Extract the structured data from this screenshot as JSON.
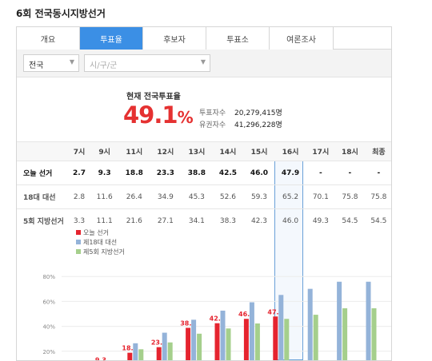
{
  "page_title": "6회 전국동시지방선거",
  "tabs": [
    {
      "label": "개요",
      "active": false
    },
    {
      "label": "투표율",
      "active": true
    },
    {
      "label": "후보자",
      "active": false
    },
    {
      "label": "투표소",
      "active": false
    },
    {
      "label": "여론조사",
      "active": false
    }
  ],
  "filters": {
    "region": "전국",
    "district_placeholder": "시/구/군"
  },
  "summary": {
    "title": "현재 전국투표율",
    "rate": "49.1",
    "unit": "%",
    "voters_label": "투표자수",
    "voters_value": "20,279,415명",
    "electorate_label": "유권자수",
    "electorate_value": "41,296,228명"
  },
  "table": {
    "hours": [
      "7시",
      "9시",
      "11시",
      "12시",
      "13시",
      "14시",
      "15시",
      "16시",
      "17시",
      "18시",
      "최종"
    ],
    "rows": [
      {
        "label": "오늘 선거",
        "values": [
          "2.7",
          "9.3",
          "18.8",
          "23.3",
          "38.8",
          "42.5",
          "46.0",
          "47.9",
          "-",
          "-",
          "-"
        ]
      },
      {
        "label": "18대 대선",
        "values": [
          "2.8",
          "11.6",
          "26.4",
          "34.9",
          "45.3",
          "52.6",
          "59.3",
          "65.2",
          "70.1",
          "75.8",
          "75.8"
        ]
      },
      {
        "label": "5회 지방선거",
        "values": [
          "3.3",
          "11.1",
          "21.6",
          "27.1",
          "34.1",
          "38.3",
          "42.3",
          "46.0",
          "49.3",
          "54.5",
          "54.5"
        ]
      }
    ]
  },
  "chart_data": {
    "type": "bar",
    "categories": [
      "7시",
      "9시",
      "11시",
      "12시",
      "13시",
      "14시",
      "15시",
      "16시",
      "17시",
      "18시",
      "최종"
    ],
    "series": [
      {
        "name": "오늘 선거",
        "values": [
          2.7,
          9.3,
          18.8,
          23.3,
          38.8,
          42.5,
          46.0,
          47.9,
          null,
          null,
          null
        ],
        "color": "#e5242f"
      },
      {
        "name": "제18대 대선",
        "values": [
          2.8,
          11.6,
          26.4,
          34.9,
          45.3,
          52.6,
          59.3,
          65.2,
          70.1,
          75.8,
          75.8
        ],
        "color": "#94b3d9"
      },
      {
        "name": "제5회 지방선거",
        "values": [
          3.3,
          11.1,
          21.6,
          27.1,
          34.1,
          38.3,
          42.3,
          46.0,
          49.3,
          54.5,
          54.5
        ],
        "color": "#a5cf8c"
      }
    ],
    "data_labels_series": "오늘 선거",
    "yticks": [
      "20%",
      "40%",
      "60%",
      "80%"
    ],
    "ylim": [
      0,
      100
    ],
    "legend": "top-left",
    "grid": true,
    "highlight_category": "16시",
    "colors": {
      "accent": "#3b8fe5",
      "highlight_border": "#6aa1d8",
      "rate_red": "#e53131"
    }
  }
}
